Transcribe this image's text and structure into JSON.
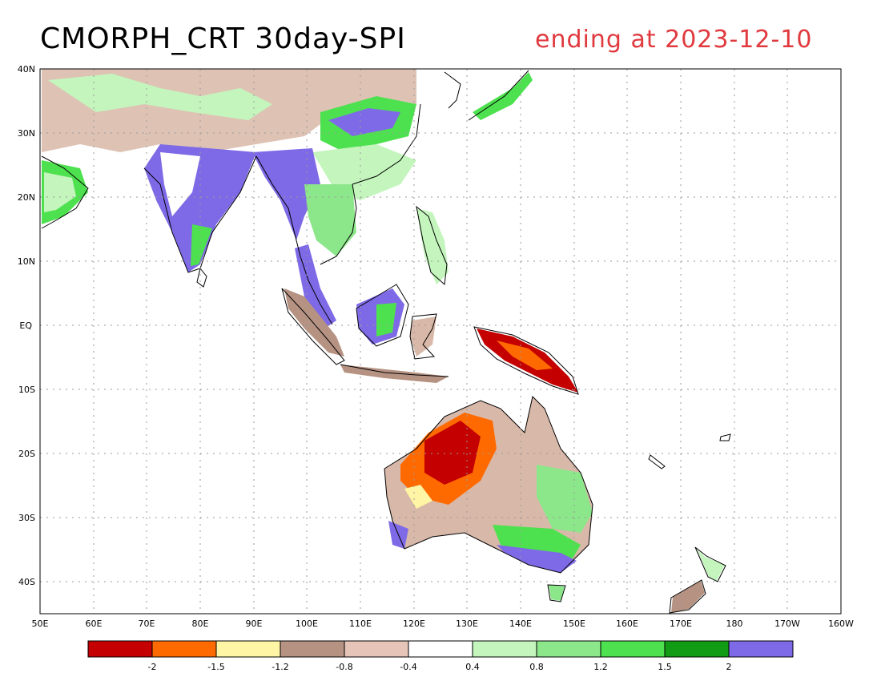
{
  "title": "CMORPH_CRT 30day-SPI",
  "date_label": "ending at 2023-12-10",
  "lat_labels": [
    "40N",
    "30N",
    "20N",
    "10N",
    "EQ",
    "10S",
    "20S",
    "30S",
    "40S"
  ],
  "lon_labels": [
    "50E",
    "60E",
    "70E",
    "80E",
    "90E",
    "100E",
    "110E",
    "120E",
    "130E",
    "140E",
    "150E",
    "160E",
    "170E",
    "180",
    "170W",
    "160W"
  ],
  "legend": {
    "colors": [
      "#c40000",
      "#ff6a00",
      "#fff5a5",
      "#b59282",
      "#e6c5b8",
      "#ffffff",
      "#c4f5bd",
      "#8ce68a",
      "#4ee14f",
      "#129b14",
      "#7e6ae6"
    ],
    "tick_labels": [
      "-2",
      "-1.5",
      "-1.2",
      "-0.8",
      "-0.4",
      "0.4",
      "0.8",
      "1.2",
      "1.5",
      "2"
    ]
  },
  "colors": {
    "title": "#000000",
    "date": "#e0393e",
    "grid": "#9a9a9a"
  }
}
